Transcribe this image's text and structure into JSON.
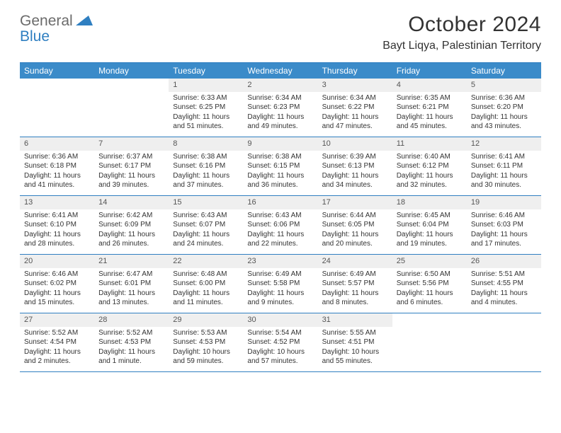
{
  "logo": {
    "text1": "General",
    "text2": "Blue"
  },
  "title": "October 2024",
  "location": "Bayt Liqya, Palestinian Territory",
  "colors": {
    "header_bar": "#3b8bc9",
    "border": "#2f7fc1",
    "daynum_bg": "#efefef",
    "text": "#333333",
    "logo_gray": "#6b6b6b",
    "logo_blue": "#2f7fc1"
  },
  "weekdays": [
    "Sunday",
    "Monday",
    "Tuesday",
    "Wednesday",
    "Thursday",
    "Friday",
    "Saturday"
  ],
  "weeks": [
    [
      {
        "n": "",
        "sr": "",
        "ss": "",
        "dl": ""
      },
      {
        "n": "",
        "sr": "",
        "ss": "",
        "dl": ""
      },
      {
        "n": "1",
        "sr": "Sunrise: 6:33 AM",
        "ss": "Sunset: 6:25 PM",
        "dl": "Daylight: 11 hours and 51 minutes."
      },
      {
        "n": "2",
        "sr": "Sunrise: 6:34 AM",
        "ss": "Sunset: 6:23 PM",
        "dl": "Daylight: 11 hours and 49 minutes."
      },
      {
        "n": "3",
        "sr": "Sunrise: 6:34 AM",
        "ss": "Sunset: 6:22 PM",
        "dl": "Daylight: 11 hours and 47 minutes."
      },
      {
        "n": "4",
        "sr": "Sunrise: 6:35 AM",
        "ss": "Sunset: 6:21 PM",
        "dl": "Daylight: 11 hours and 45 minutes."
      },
      {
        "n": "5",
        "sr": "Sunrise: 6:36 AM",
        "ss": "Sunset: 6:20 PM",
        "dl": "Daylight: 11 hours and 43 minutes."
      }
    ],
    [
      {
        "n": "6",
        "sr": "Sunrise: 6:36 AM",
        "ss": "Sunset: 6:18 PM",
        "dl": "Daylight: 11 hours and 41 minutes."
      },
      {
        "n": "7",
        "sr": "Sunrise: 6:37 AM",
        "ss": "Sunset: 6:17 PM",
        "dl": "Daylight: 11 hours and 39 minutes."
      },
      {
        "n": "8",
        "sr": "Sunrise: 6:38 AM",
        "ss": "Sunset: 6:16 PM",
        "dl": "Daylight: 11 hours and 37 minutes."
      },
      {
        "n": "9",
        "sr": "Sunrise: 6:38 AM",
        "ss": "Sunset: 6:15 PM",
        "dl": "Daylight: 11 hours and 36 minutes."
      },
      {
        "n": "10",
        "sr": "Sunrise: 6:39 AM",
        "ss": "Sunset: 6:13 PM",
        "dl": "Daylight: 11 hours and 34 minutes."
      },
      {
        "n": "11",
        "sr": "Sunrise: 6:40 AM",
        "ss": "Sunset: 6:12 PM",
        "dl": "Daylight: 11 hours and 32 minutes."
      },
      {
        "n": "12",
        "sr": "Sunrise: 6:41 AM",
        "ss": "Sunset: 6:11 PM",
        "dl": "Daylight: 11 hours and 30 minutes."
      }
    ],
    [
      {
        "n": "13",
        "sr": "Sunrise: 6:41 AM",
        "ss": "Sunset: 6:10 PM",
        "dl": "Daylight: 11 hours and 28 minutes."
      },
      {
        "n": "14",
        "sr": "Sunrise: 6:42 AM",
        "ss": "Sunset: 6:09 PM",
        "dl": "Daylight: 11 hours and 26 minutes."
      },
      {
        "n": "15",
        "sr": "Sunrise: 6:43 AM",
        "ss": "Sunset: 6:07 PM",
        "dl": "Daylight: 11 hours and 24 minutes."
      },
      {
        "n": "16",
        "sr": "Sunrise: 6:43 AM",
        "ss": "Sunset: 6:06 PM",
        "dl": "Daylight: 11 hours and 22 minutes."
      },
      {
        "n": "17",
        "sr": "Sunrise: 6:44 AM",
        "ss": "Sunset: 6:05 PM",
        "dl": "Daylight: 11 hours and 20 minutes."
      },
      {
        "n": "18",
        "sr": "Sunrise: 6:45 AM",
        "ss": "Sunset: 6:04 PM",
        "dl": "Daylight: 11 hours and 19 minutes."
      },
      {
        "n": "19",
        "sr": "Sunrise: 6:46 AM",
        "ss": "Sunset: 6:03 PM",
        "dl": "Daylight: 11 hours and 17 minutes."
      }
    ],
    [
      {
        "n": "20",
        "sr": "Sunrise: 6:46 AM",
        "ss": "Sunset: 6:02 PM",
        "dl": "Daylight: 11 hours and 15 minutes."
      },
      {
        "n": "21",
        "sr": "Sunrise: 6:47 AM",
        "ss": "Sunset: 6:01 PM",
        "dl": "Daylight: 11 hours and 13 minutes."
      },
      {
        "n": "22",
        "sr": "Sunrise: 6:48 AM",
        "ss": "Sunset: 6:00 PM",
        "dl": "Daylight: 11 hours and 11 minutes."
      },
      {
        "n": "23",
        "sr": "Sunrise: 6:49 AM",
        "ss": "Sunset: 5:58 PM",
        "dl": "Daylight: 11 hours and 9 minutes."
      },
      {
        "n": "24",
        "sr": "Sunrise: 6:49 AM",
        "ss": "Sunset: 5:57 PM",
        "dl": "Daylight: 11 hours and 8 minutes."
      },
      {
        "n": "25",
        "sr": "Sunrise: 6:50 AM",
        "ss": "Sunset: 5:56 PM",
        "dl": "Daylight: 11 hours and 6 minutes."
      },
      {
        "n": "26",
        "sr": "Sunrise: 5:51 AM",
        "ss": "Sunset: 4:55 PM",
        "dl": "Daylight: 11 hours and 4 minutes."
      }
    ],
    [
      {
        "n": "27",
        "sr": "Sunrise: 5:52 AM",
        "ss": "Sunset: 4:54 PM",
        "dl": "Daylight: 11 hours and 2 minutes."
      },
      {
        "n": "28",
        "sr": "Sunrise: 5:52 AM",
        "ss": "Sunset: 4:53 PM",
        "dl": "Daylight: 11 hours and 1 minute."
      },
      {
        "n": "29",
        "sr": "Sunrise: 5:53 AM",
        "ss": "Sunset: 4:53 PM",
        "dl": "Daylight: 10 hours and 59 minutes."
      },
      {
        "n": "30",
        "sr": "Sunrise: 5:54 AM",
        "ss": "Sunset: 4:52 PM",
        "dl": "Daylight: 10 hours and 57 minutes."
      },
      {
        "n": "31",
        "sr": "Sunrise: 5:55 AM",
        "ss": "Sunset: 4:51 PM",
        "dl": "Daylight: 10 hours and 55 minutes."
      },
      {
        "n": "",
        "sr": "",
        "ss": "",
        "dl": ""
      },
      {
        "n": "",
        "sr": "",
        "ss": "",
        "dl": ""
      }
    ]
  ]
}
